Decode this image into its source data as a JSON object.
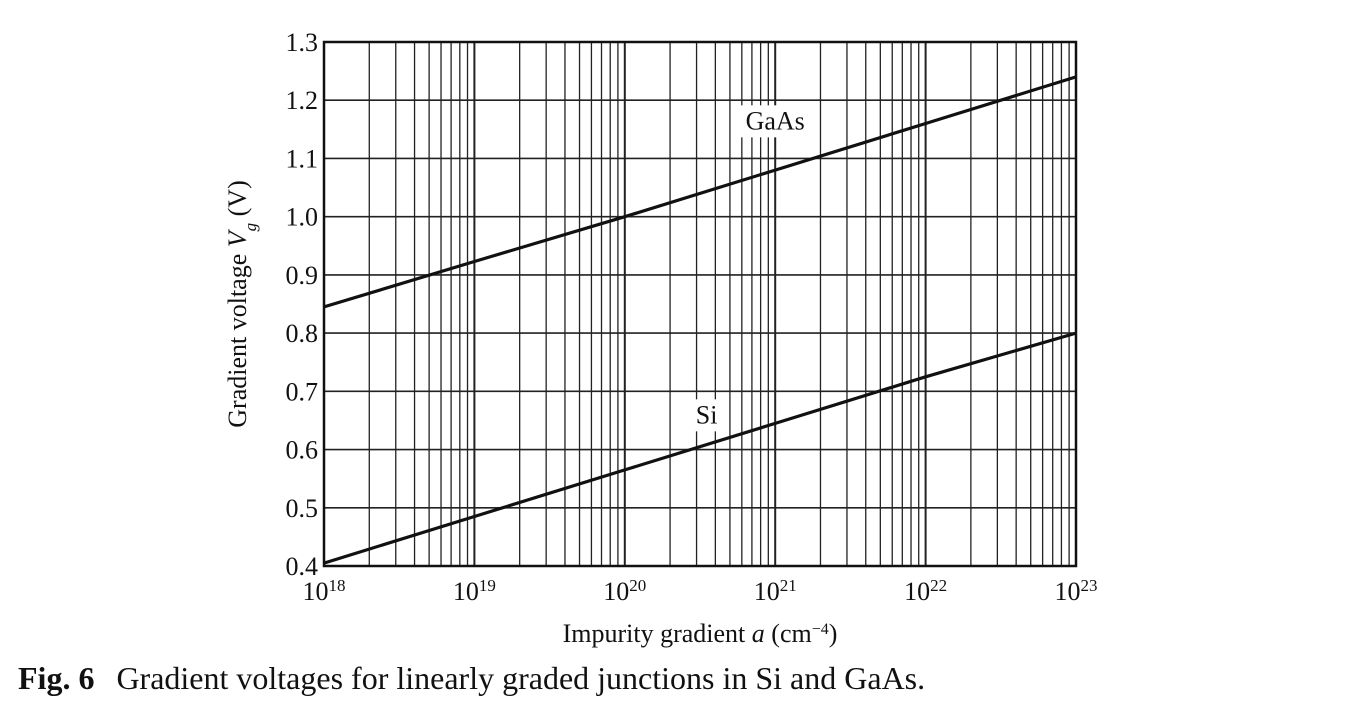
{
  "chart_data": {
    "type": "line",
    "title": "",
    "xlabel": "Impurity gradient a (cm⁻⁴)",
    "xlabel_parts": {
      "pre": "Impurity gradient ",
      "var": "a",
      "post": " (cm",
      "exp": "−4",
      "close": ")"
    },
    "ylabel": "Gradient voltage Vg (V)",
    "ylabel_parts": {
      "pre": "Gradient voltage ",
      "var": "V",
      "sub": "g",
      "post": " (V)"
    },
    "x_scale": "log",
    "xlim": [
      1e+18,
      1e+23
    ],
    "ylim": [
      0.4,
      1.3
    ],
    "grid": true,
    "x_ticks": [
      {
        "value": 1e+18,
        "base": "10",
        "exp": "18"
      },
      {
        "value": 1e+19,
        "base": "10",
        "exp": "19"
      },
      {
        "value": 1e+20,
        "base": "10",
        "exp": "20"
      },
      {
        "value": 1e+21,
        "base": "10",
        "exp": "21"
      },
      {
        "value": 1e+22,
        "base": "10",
        "exp": "22"
      },
      {
        "value": 1e+23,
        "base": "10",
        "exp": "23"
      }
    ],
    "y_ticks": [
      "0.4",
      "0.5",
      "0.6",
      "0.7",
      "0.8",
      "0.9",
      "1.0",
      "1.1",
      "1.2",
      "1.3"
    ],
    "series": [
      {
        "name": "GaAs",
        "x": [
          1e+18,
          1e+19,
          1e+20,
          1e+21,
          1e+22,
          1e+23
        ],
        "y": [
          0.845,
          0.923,
          1.0,
          1.08,
          1.16,
          1.24
        ],
        "label_at": [
          1e+21,
          1.15
        ]
      },
      {
        "name": "Si",
        "x": [
          1e+18,
          1e+19,
          1e+20,
          1e+21,
          1e+22,
          1e+23
        ],
        "y": [
          0.405,
          0.485,
          0.565,
          0.645,
          0.725,
          0.8
        ],
        "label_at": [
          3.5e+20,
          0.645
        ]
      }
    ],
    "line_color": "#111111",
    "grid_color": "#222222"
  },
  "caption": {
    "label": "Fig. 6",
    "text": "Gradient voltages for linearly graded junctions in Si and GaAs."
  }
}
